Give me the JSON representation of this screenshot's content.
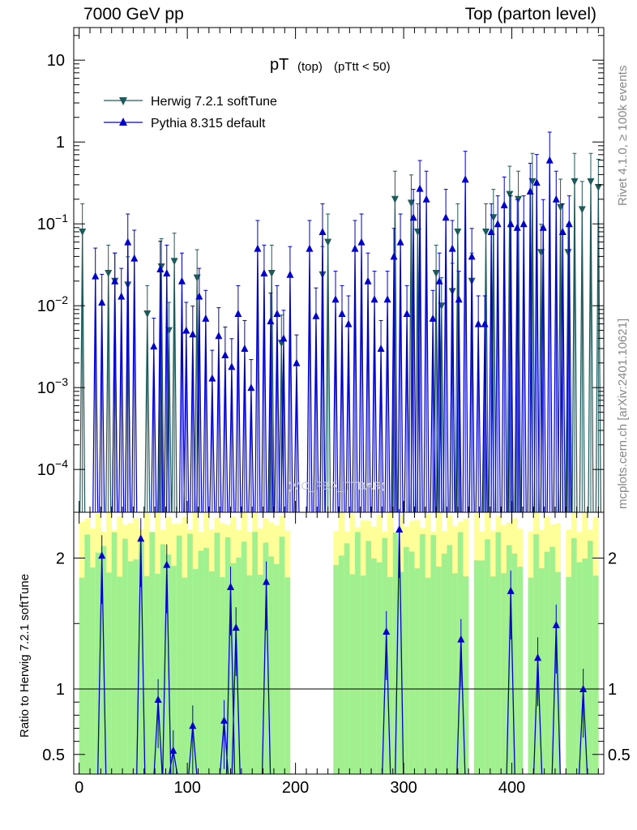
{
  "header": {
    "energy": "7000 GeV pp",
    "process": "Top (parton level)"
  },
  "side": {
    "rivet": "Rivet 4.1.0, ≥ 100k events",
    "mcplots": "mcplots.cern.ch [arXiv:2401.10621]"
  },
  "plot": {
    "title_main": "pT",
    "title_sub": "(top)",
    "title_cut": "(pTtt < 50)",
    "watermark": "(MC_FBA_TTBAR)",
    "ratio_ylabel": "Ratio to Herwig 7.2.1 softTune"
  },
  "colors": {
    "herwig": "#1e5a5a",
    "pythia": "#0000cc",
    "band_green": "#a0f090",
    "band_yellow": "#ffff99"
  },
  "chart_data": {
    "type": "line",
    "title": "pT (top) (pTtt < 50)",
    "xlabel": "",
    "ylabel": "",
    "xlim": [
      -5,
      485
    ],
    "ylim": [
      3e-05,
      25
    ],
    "yscale": "log",
    "x_ticks": [
      "0",
      "100",
      "200",
      "300",
      "400"
    ],
    "y_ticks": [
      "10^-4",
      "10^-3",
      "10^-2",
      "10^-1",
      "1",
      "10"
    ],
    "legend": [
      "Herwig 7.2.1 softTune",
      "Pythia 8.315 default"
    ],
    "legend_position": "top-left",
    "series": [
      {
        "name": "Herwig 7.2.1 softTune",
        "points": [
          [
            3,
            0.08
          ],
          [
            27,
            0.025
          ],
          [
            33,
            0.02
          ],
          [
            45,
            0.018
          ],
          [
            63,
            0.008
          ],
          [
            76,
            0.03
          ],
          [
            83,
            0.005
          ],
          [
            88,
            0.035
          ],
          [
            109,
            0.022
          ],
          [
            178,
            0.025
          ],
          [
            187,
            0.0035
          ],
          [
            225,
            0.024
          ],
          [
            230,
            0.06
          ],
          [
            292,
            0.2
          ],
          [
            307,
            0.18
          ],
          [
            313,
            0.08
          ],
          [
            330,
            0.025
          ],
          [
            335,
            0.01
          ],
          [
            345,
            0.015
          ],
          [
            350,
            0.08
          ],
          [
            363,
            0.02
          ],
          [
            376,
            0.08
          ],
          [
            383,
            0.12
          ],
          [
            398,
            0.23
          ],
          [
            406,
            0.2
          ],
          [
            419,
            0.33
          ],
          [
            427,
            0.045
          ],
          [
            445,
            0.16
          ],
          [
            452,
            0.045
          ],
          [
            458,
            0.33
          ],
          [
            465,
            0.15
          ],
          [
            473,
            0.33
          ],
          [
            480,
            0.28
          ]
        ]
      },
      {
        "name": "Pythia 8.315 default",
        "points": [
          [
            15,
            0.023
          ],
          [
            21,
            0.011
          ],
          [
            33,
            0.02
          ],
          [
            39,
            0.013
          ],
          [
            45,
            0.06
          ],
          [
            51,
            0.038
          ],
          [
            69,
            0.0032
          ],
          [
            75,
            0.028
          ],
          [
            81,
            0.025
          ],
          [
            95,
            0.02
          ],
          [
            99,
            0.005
          ],
          [
            105,
            0.0045
          ],
          [
            111,
            0.013
          ],
          [
            117,
            0.007
          ],
          [
            123,
            0.0013
          ],
          [
            129,
            0.0043
          ],
          [
            135,
            0.0025
          ],
          [
            141,
            0.0018
          ],
          [
            147,
            0.008
          ],
          [
            153,
            0.003
          ],
          [
            159,
            0.001
          ],
          [
            165,
            0.05
          ],
          [
            171,
            0.025
          ],
          [
            177,
            0.0065
          ],
          [
            183,
            0.008
          ],
          [
            189,
            0.004
          ],
          [
            195,
            0.024
          ],
          [
            201,
            0.002
          ],
          [
            213,
            0.05
          ],
          [
            219,
            0.0075
          ],
          [
            225,
            0.08
          ],
          [
            237,
            0.012
          ],
          [
            243,
            0.008
          ],
          [
            249,
            0.006
          ],
          [
            255,
            0.05
          ],
          [
            261,
            0.06
          ],
          [
            267,
            0.02
          ],
          [
            273,
            0.012
          ],
          [
            279,
            0.003
          ],
          [
            285,
            0.012
          ],
          [
            291,
            0.04
          ],
          [
            297,
            0.06
          ],
          [
            303,
            0.008
          ],
          [
            309,
            0.12
          ],
          [
            315,
            0.27
          ],
          [
            321,
            0.2
          ],
          [
            327,
            0.007
          ],
          [
            333,
            0.02
          ],
          [
            339,
            0.12
          ],
          [
            345,
            0.05
          ],
          [
            351,
            0.012
          ],
          [
            357,
            0.35
          ],
          [
            363,
            0.04
          ],
          [
            369,
            0.006
          ],
          [
            375,
            0.006
          ],
          [
            381,
            0.08
          ],
          [
            387,
            0.1
          ],
          [
            393,
            0.17
          ],
          [
            399,
            0.1
          ],
          [
            405,
            0.09
          ],
          [
            411,
            0.1
          ],
          [
            417,
            0.25
          ],
          [
            423,
            0.32
          ],
          [
            429,
            0.09
          ],
          [
            435,
            0.6
          ],
          [
            441,
            0.2
          ],
          [
            447,
            0.08
          ],
          [
            453,
            0.1
          ]
        ]
      }
    ],
    "ratio": {
      "ylabel": "Ratio to Herwig 7.2.1 softTune",
      "ylim": [
        0.35,
        2.35
      ],
      "y_ticks": [
        "0.5",
        "1",
        "2"
      ],
      "reference": 1,
      "pythia_points": [
        [
          21,
          2.02
        ],
        [
          57,
          2.15
        ],
        [
          73,
          0.92
        ],
        [
          81,
          1.95
        ],
        [
          87,
          0.53
        ],
        [
          105,
          0.72
        ],
        [
          134,
          0.76
        ],
        [
          140,
          1.78
        ],
        [
          145,
          1.47
        ],
        [
          173,
          1.82
        ],
        [
          284,
          1.44
        ],
        [
          296,
          2.22
        ],
        [
          353,
          1.38
        ],
        [
          399,
          1.75
        ],
        [
          424,
          1.24
        ],
        [
          441,
          1.49
        ],
        [
          466,
          1.0
        ]
      ]
    }
  }
}
